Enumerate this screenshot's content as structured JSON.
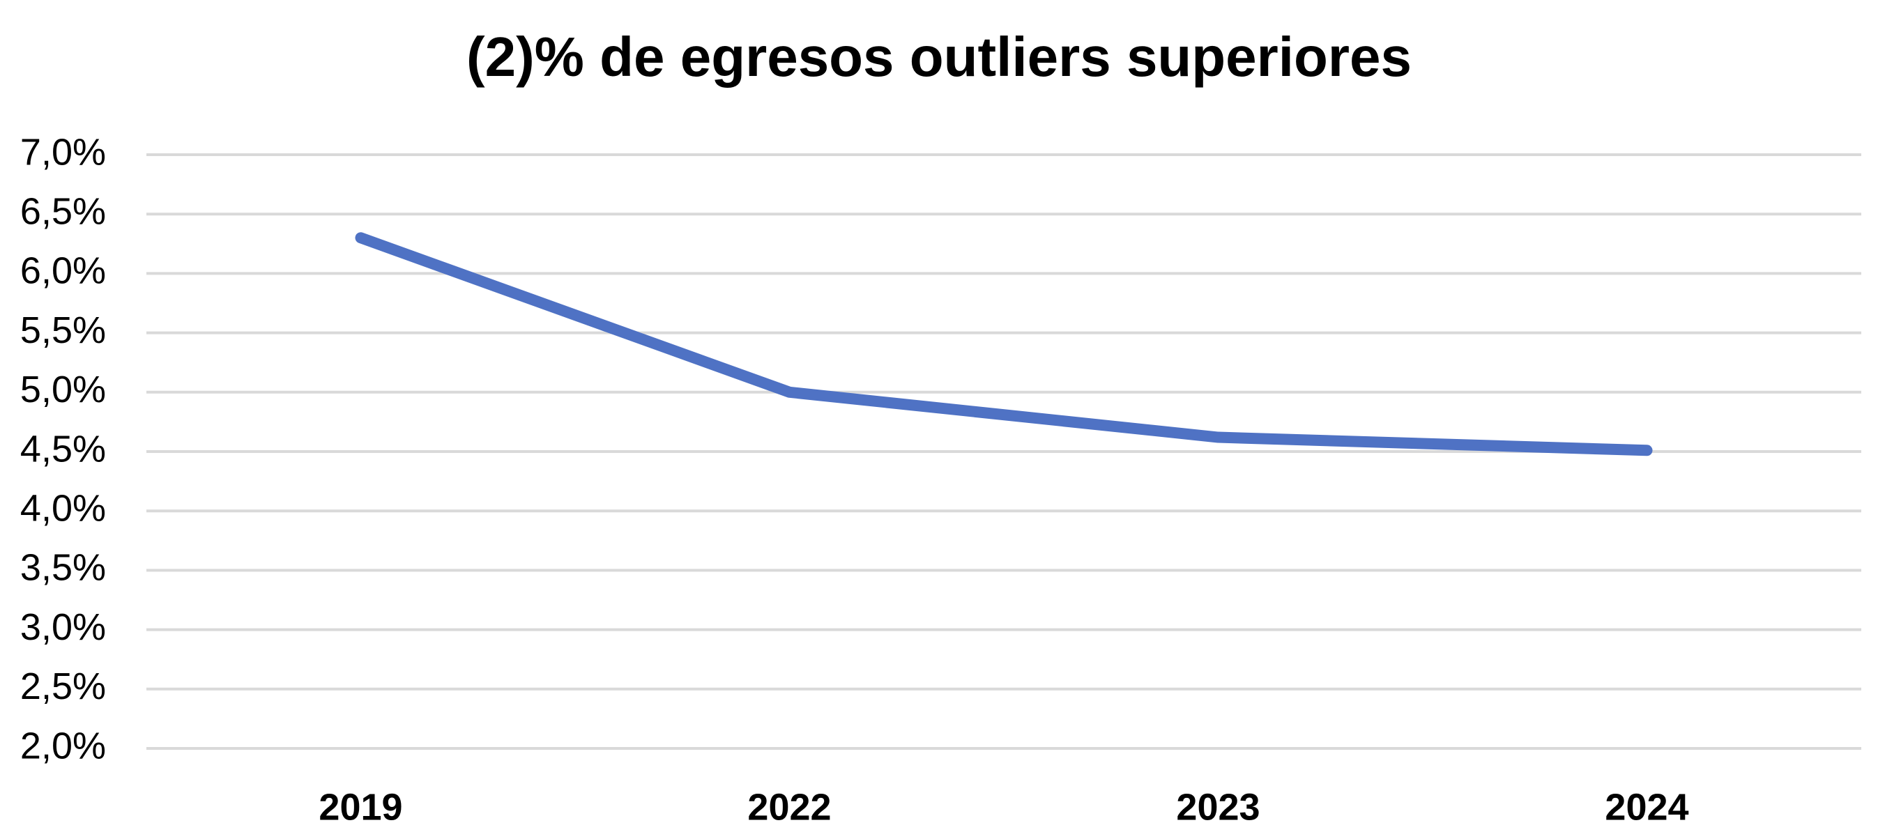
{
  "chart_data": {
    "type": "line",
    "title": "(2)% de egresos outliers superiores",
    "xlabel": "",
    "ylabel": "",
    "categories": [
      "2019",
      "2022",
      "2023",
      "2024"
    ],
    "series": [
      {
        "values": [
          6.3,
          5.0,
          4.62,
          4.51
        ]
      }
    ],
    "ylim": [
      2.0,
      7.0
    ],
    "ytick_labels": [
      "7,0%",
      "6,5%",
      "6,0%",
      "5,5%",
      "5,0%",
      "4,5%",
      "4,0%",
      "3,5%",
      "3,0%",
      "2,5%",
      "2,0%"
    ],
    "ytick_values": [
      7.0,
      6.5,
      6.0,
      5.5,
      5.0,
      4.5,
      4.0,
      3.5,
      3.0,
      2.5,
      2.0
    ],
    "grid": true,
    "legend": "none",
    "colors": {
      "line": "#4F72C4",
      "grid": "#D9D9D9"
    }
  }
}
